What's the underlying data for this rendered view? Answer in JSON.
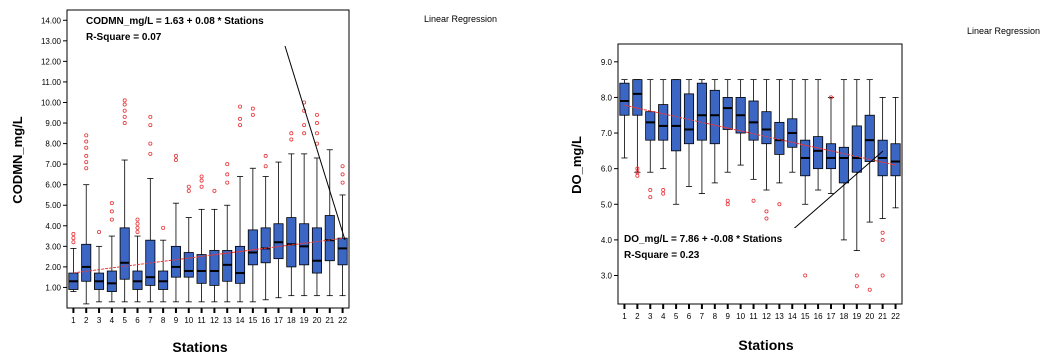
{
  "chart_data": [
    {
      "type": "box",
      "legend_label": "Linear Regression",
      "xlabel": "Stations",
      "ylabel": "CODMN_mg/L",
      "ylim": [
        0,
        14.5
      ],
      "yticks": [
        "1.00",
        "2.00",
        "3.00",
        "4.00",
        "5.00",
        "6.00",
        "7.00",
        "8.00",
        "9.00",
        "10.00",
        "11.00",
        "12.00",
        "13.00",
        "14.00"
      ],
      "categories": [
        "1",
        "2",
        "3",
        "4",
        "5",
        "6",
        "7",
        "8",
        "9",
        "10",
        "11",
        "12",
        "13",
        "14",
        "15",
        "16",
        "17",
        "18",
        "19",
        "20",
        "21",
        "22"
      ],
      "boxes": [
        {
          "min": 0.8,
          "q1": 0.9,
          "med": 1.3,
          "q3": 1.7,
          "max": 2.9,
          "out": [
            3.2,
            3.4,
            3.6
          ]
        },
        {
          "min": 0.2,
          "q1": 1.3,
          "med": 2.0,
          "q3": 3.1,
          "max": 6.0,
          "out": [
            6.8,
            7.1,
            7.4,
            7.8,
            8.1,
            8.4
          ]
        },
        {
          "min": 0.3,
          "q1": 0.9,
          "med": 1.3,
          "q3": 1.7,
          "max": 3.0,
          "out": [
            3.7
          ]
        },
        {
          "min": 0.3,
          "q1": 0.8,
          "med": 1.2,
          "q3": 1.8,
          "max": 3.5,
          "out": [
            4.3,
            4.7,
            5.1
          ]
        },
        {
          "min": 0.3,
          "q1": 1.4,
          "med": 2.2,
          "q3": 3.9,
          "max": 7.2,
          "out": [
            9.0,
            9.3,
            9.6,
            9.9,
            10.1
          ]
        },
        {
          "min": 0.3,
          "q1": 0.9,
          "med": 1.3,
          "q3": 1.8,
          "max": 3.5,
          "out": [
            3.7,
            3.9,
            4.1,
            4.3
          ]
        },
        {
          "min": 0.3,
          "q1": 1.1,
          "med": 1.5,
          "q3": 3.3,
          "max": 6.3,
          "out": [
            7.5,
            8.0,
            8.9,
            9.3
          ]
        },
        {
          "min": 0.3,
          "q1": 0.9,
          "med": 1.3,
          "q3": 1.8,
          "max": 3.3,
          "out": [
            3.9
          ]
        },
        {
          "min": 0.3,
          "q1": 1.5,
          "med": 2.0,
          "q3": 3.0,
          "max": 5.1,
          "out": [
            7.2,
            7.4
          ]
        },
        {
          "min": 0.3,
          "q1": 1.5,
          "med": 1.8,
          "q3": 2.7,
          "max": 4.4,
          "out": [
            5.7,
            5.9
          ]
        },
        {
          "min": 0.3,
          "q1": 1.2,
          "med": 1.8,
          "q3": 2.6,
          "max": 4.8,
          "out": [
            5.9,
            6.2,
            6.4
          ]
        },
        {
          "min": 0.3,
          "q1": 1.1,
          "med": 1.8,
          "q3": 2.8,
          "max": 4.8,
          "out": [
            5.7
          ]
        },
        {
          "min": 0.3,
          "q1": 1.3,
          "med": 2.1,
          "q3": 2.8,
          "max": 5.0,
          "out": [
            6.1,
            6.5,
            7.0
          ]
        },
        {
          "min": 0.3,
          "q1": 1.2,
          "med": 1.7,
          "q3": 3.0,
          "max": 6.4,
          "out": [
            8.9,
            9.2,
            9.8
          ]
        },
        {
          "min": 0.3,
          "q1": 2.1,
          "med": 2.7,
          "q3": 3.8,
          "max": 6.8,
          "out": [
            9.4,
            9.7
          ]
        },
        {
          "min": 0.4,
          "q1": 2.2,
          "med": 2.9,
          "q3": 3.9,
          "max": 6.4,
          "out": [
            6.9,
            7.4
          ]
        },
        {
          "min": 0.5,
          "q1": 2.4,
          "med": 3.2,
          "q3": 4.1,
          "max": 7.1,
          "out": []
        },
        {
          "min": 0.6,
          "q1": 2.0,
          "med": 3.1,
          "q3": 4.4,
          "max": 7.5,
          "out": [
            8.2,
            8.5
          ]
        },
        {
          "min": 0.6,
          "q1": 2.1,
          "med": 3.0,
          "q3": 4.1,
          "max": 7.5,
          "out": [
            8.5,
            8.9,
            9.6,
            10.0
          ]
        },
        {
          "min": 0.6,
          "q1": 1.7,
          "med": 2.3,
          "q3": 3.9,
          "max": 7.3,
          "out": [
            8.0,
            8.5,
            9.0,
            9.4
          ]
        },
        {
          "min": 0.6,
          "q1": 2.3,
          "med": 3.3,
          "q3": 4.5,
          "max": 7.7,
          "out": []
        },
        {
          "min": 0.6,
          "q1": 2.1,
          "med": 2.9,
          "q3": 3.4,
          "max": 5.5,
          "out": [
            6.1,
            6.5,
            6.9
          ]
        }
      ],
      "regression": {
        "intercept": 1.63,
        "slope": 0.08
      },
      "annotation": [
        "CODMN_mg/L = 1.63 + 0.08 * Stations",
        "R-Square = 0.07"
      ],
      "box_color": "#3c66c4",
      "outlier_color": "#e8383d",
      "fit_color": "#e8383d"
    },
    {
      "type": "box",
      "legend_label": "Linear Regression",
      "xlabel": "Stations",
      "ylabel": "DO_mg/L",
      "ylim": [
        2.2,
        9.5
      ],
      "yticks": [
        "3.0",
        "4.0",
        "5.0",
        "6.0",
        "7.0",
        "8.0",
        "9.0"
      ],
      "categories": [
        "1",
        "2",
        "3",
        "4",
        "5",
        "6",
        "7",
        "8",
        "9",
        "10",
        "11",
        "12",
        "13",
        "14",
        "15",
        "16",
        "17",
        "18",
        "19",
        "20",
        "21",
        "22"
      ],
      "boxes": [
        {
          "min": 6.3,
          "q1": 7.5,
          "med": 7.9,
          "q3": 8.4,
          "max": 8.5,
          "out": []
        },
        {
          "min": 5.9,
          "q1": 7.5,
          "med": 8.1,
          "q3": 8.5,
          "max": 8.5,
          "out": [
            5.8,
            5.9,
            6.0
          ]
        },
        {
          "min": 5.9,
          "q1": 6.8,
          "med": 7.3,
          "q3": 7.6,
          "max": 8.5,
          "out": [
            5.2,
            5.4
          ]
        },
        {
          "min": 6.0,
          "q1": 6.8,
          "med": 7.2,
          "q3": 7.8,
          "max": 8.5,
          "out": [
            5.3,
            5.4
          ]
        },
        {
          "min": 5.0,
          "q1": 6.5,
          "med": 7.2,
          "q3": 8.5,
          "max": 8.5,
          "out": []
        },
        {
          "min": 5.5,
          "q1": 6.7,
          "med": 7.1,
          "q3": 8.1,
          "max": 8.5,
          "out": []
        },
        {
          "min": 5.3,
          "q1": 6.8,
          "med": 7.5,
          "q3": 8.4,
          "max": 8.5,
          "out": []
        },
        {
          "min": 5.6,
          "q1": 6.7,
          "med": 7.5,
          "q3": 8.2,
          "max": 8.5,
          "out": []
        },
        {
          "min": 5.9,
          "q1": 7.1,
          "med": 7.7,
          "q3": 8.0,
          "max": 8.5,
          "out": [
            5.0,
            5.1
          ]
        },
        {
          "min": 6.1,
          "q1": 7.0,
          "med": 7.5,
          "q3": 8.0,
          "max": 8.5,
          "out": []
        },
        {
          "min": 5.7,
          "q1": 6.8,
          "med": 7.3,
          "q3": 7.9,
          "max": 8.5,
          "out": [
            5.1
          ]
        },
        {
          "min": 5.4,
          "q1": 6.7,
          "med": 7.1,
          "q3": 7.6,
          "max": 8.5,
          "out": [
            4.6,
            4.8
          ]
        },
        {
          "min": 5.6,
          "q1": 6.4,
          "med": 6.8,
          "q3": 7.3,
          "max": 8.5,
          "out": [
            5.0
          ]
        },
        {
          "min": 5.9,
          "q1": 6.6,
          "med": 7.0,
          "q3": 7.4,
          "max": 8.5,
          "out": []
        },
        {
          "min": 5.0,
          "q1": 5.8,
          "med": 6.3,
          "q3": 6.8,
          "max": 8.5,
          "out": [
            3.0
          ]
        },
        {
          "min": 5.4,
          "q1": 6.0,
          "med": 6.5,
          "q3": 6.9,
          "max": 8.5,
          "out": []
        },
        {
          "min": 5.3,
          "q1": 6.0,
          "med": 6.3,
          "q3": 6.7,
          "max": 8.0,
          "out": [
            8.0
          ]
        },
        {
          "min": 4.0,
          "q1": 5.6,
          "med": 6.3,
          "q3": 6.6,
          "max": 8.5,
          "out": []
        },
        {
          "min": 3.7,
          "q1": 5.9,
          "med": 6.3,
          "q3": 7.2,
          "max": 8.5,
          "out": [
            3.0,
            2.7
          ]
        },
        {
          "min": 4.5,
          "q1": 6.2,
          "med": 6.8,
          "q3": 7.5,
          "max": 8.5,
          "out": [
            2.6
          ]
        },
        {
          "min": 4.6,
          "q1": 5.8,
          "med": 6.3,
          "q3": 6.8,
          "max": 8.0,
          "out": [
            4.0,
            4.2,
            3.0
          ]
        },
        {
          "min": 4.9,
          "q1": 5.8,
          "med": 6.2,
          "q3": 6.7,
          "max": 8.0,
          "out": []
        }
      ],
      "regression": {
        "intercept": 7.86,
        "slope": -0.08
      },
      "annotation": [
        "DO_mg/L = 7.86 + -0.08 * Stations",
        "R-Square = 0.23"
      ],
      "box_color": "#3c66c4",
      "outlier_color": "#e8383d",
      "fit_color": "#e8383d"
    }
  ]
}
